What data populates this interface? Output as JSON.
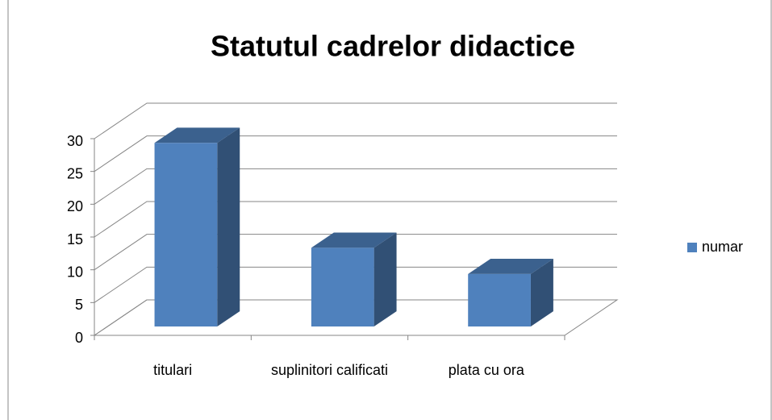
{
  "chart_data": {
    "type": "bar3d",
    "title": "Statutul cadrelor didactice",
    "categories": [
      "titulari",
      "suplinitori calificati",
      "plata cu ora"
    ],
    "series": [
      {
        "name": "numar",
        "color": "#4f81bd",
        "values": [
          28,
          12,
          8
        ]
      }
    ],
    "ylim": [
      0,
      30
    ],
    "yticks": [
      0,
      5,
      10,
      15,
      20,
      25,
      30
    ],
    "grid": true,
    "legend": "right"
  }
}
